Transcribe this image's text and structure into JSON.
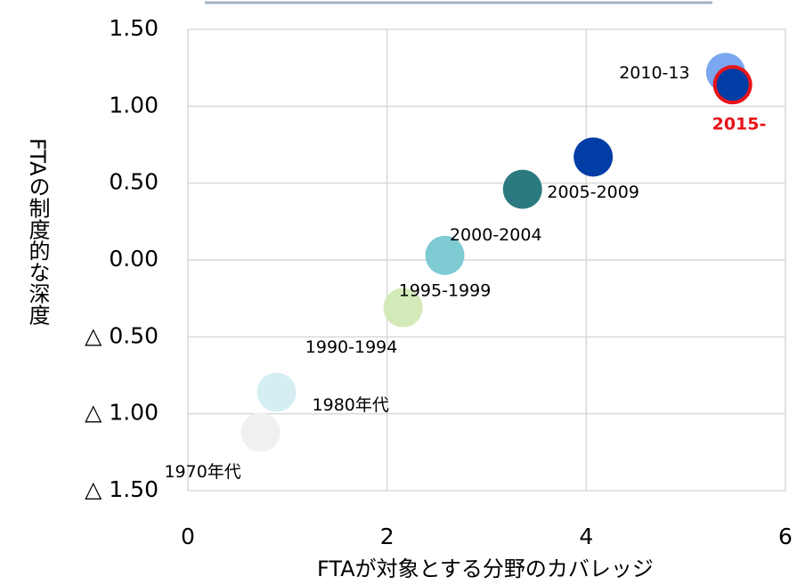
{
  "chart_data": {
    "type": "scatter",
    "x_label": "FTAが対象とする分野のカバレッジ",
    "y_label": "FTAの制度的な深度",
    "labels": [
      "1970年代",
      "1980年代",
      "1990-1994",
      "1995-1999",
      "2000-2004",
      "2005-2009",
      "2010-13",
      "2015-"
    ],
    "x": [
      0.73,
      0.89,
      2.16,
      2.58,
      3.36,
      4.07,
      5.4,
      5.47
    ],
    "y": [
      -1.12,
      -0.86,
      -0.31,
      0.03,
      0.46,
      0.67,
      1.22,
      1.14
    ],
    "colors": [
      "#f0f0f0",
      "#d5eef2",
      "#d3e9b7",
      "#7ecbd4",
      "#2b7a7f",
      "#003da5",
      "#7aa7ef",
      "#003da5"
    ],
    "xlim": [
      0,
      6
    ],
    "xticks": [
      0,
      2,
      4,
      6
    ],
    "ylim": [
      -1.5,
      1.5
    ],
    "yticks": [
      {
        "value": 1.5,
        "label": "1.50"
      },
      {
        "value": 1.0,
        "label": "1.00"
      },
      {
        "value": 0.5,
        "label": "0.50"
      },
      {
        "value": 0.0,
        "label": "0.00"
      },
      {
        "value": -0.5,
        "label": "△ 0.50"
      },
      {
        "value": -1.0,
        "label": "△ 1.00"
      },
      {
        "value": -1.5,
        "label": "△ 1.50"
      }
    ],
    "grid": true
  }
}
